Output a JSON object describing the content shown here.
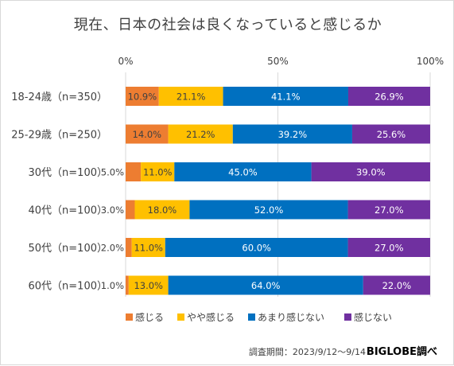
{
  "chart_data": {
    "type": "bar",
    "orientation": "horizontal-stacked-100",
    "title": "現在、日本の社会は良くなっていると感じるか",
    "categories": [
      "18-24歳（n=350）",
      "25-29歳（n=250）",
      "30代（n=100）",
      "40代（n=100）",
      "50代（n=100）",
      "60代（n=100）"
    ],
    "xticks": [
      "0%",
      "50%",
      "100%"
    ],
    "xlim": [
      0,
      100
    ],
    "series": [
      {
        "name": "感じる",
        "color": "#ed7d31",
        "values": [
          10.9,
          14.0,
          5.0,
          3.0,
          2.0,
          1.0
        ],
        "labels": [
          "10.9%",
          "14.0%",
          "5.0%",
          "3.0%",
          "2.0%",
          "1.0%"
        ]
      },
      {
        "name": "やや感じる",
        "color": "#ffc000",
        "values": [
          21.1,
          21.2,
          11.0,
          18.0,
          11.0,
          13.0
        ],
        "labels": [
          "21.1%",
          "21.2%",
          "11.0%",
          "18.0%",
          "11.0%",
          "13.0%"
        ]
      },
      {
        "name": "あまり感じない",
        "color": "#0070c0",
        "values": [
          41.1,
          39.2,
          45.0,
          52.0,
          60.0,
          64.0
        ],
        "labels": [
          "41.1%",
          "39.2%",
          "45.0%",
          "52.0%",
          "60.0%",
          "64.0%"
        ]
      },
      {
        "name": "感じない",
        "color": "#7030a0",
        "values": [
          26.9,
          25.6,
          39.0,
          27.0,
          27.0,
          22.0
        ],
        "labels": [
          "26.9%",
          "25.6%",
          "39.0%",
          "27.0%",
          "27.0%",
          "22.0%"
        ]
      }
    ],
    "legend_position": "bottom",
    "grid": true
  },
  "footer": {
    "survey_period": "調査期間：2023/9/12～9/14",
    "brand": "BIGLOBE調べ"
  }
}
